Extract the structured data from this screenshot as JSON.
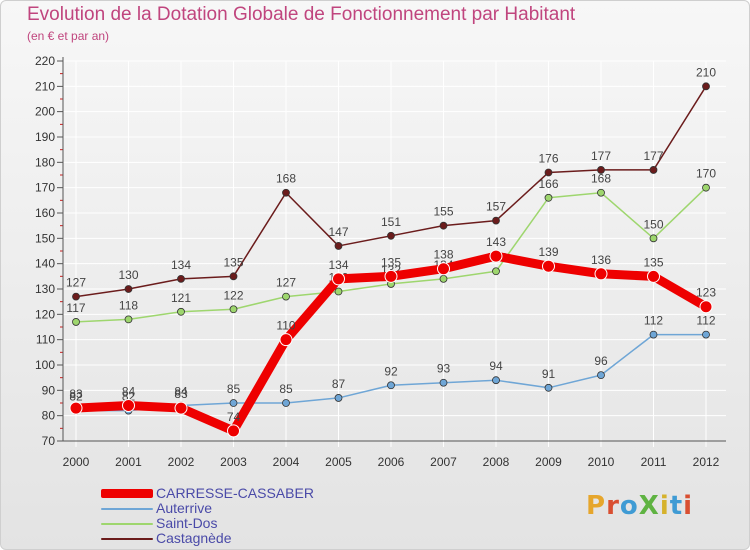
{
  "title": "Evolution de la Dotation Globale de Fonctionnement par Habitant",
  "subtitle": "(en € et par an)",
  "logo": {
    "text": "ProXiti",
    "letter_colors": [
      "#e6a62c",
      "#d94f31",
      "#3f9bd4",
      "#5fb342",
      "#d6b22c",
      "#3f9bd4",
      "#d94f31"
    ]
  },
  "chart_data": {
    "type": "line",
    "title": "Evolution de la Dotation Globale de Fonctionnement par Habitant",
    "subtitle": "(en € et par an)",
    "xlabel": "",
    "ylabel": "",
    "x": [
      "2000",
      "2001",
      "2002",
      "2003",
      "2004",
      "2005",
      "2006",
      "2007",
      "2008",
      "2009",
      "2010",
      "2011",
      "2012"
    ],
    "ylim": [
      70,
      220
    ],
    "yticks": [
      70,
      80,
      90,
      100,
      110,
      120,
      130,
      140,
      150,
      160,
      170,
      180,
      190,
      200,
      210,
      220
    ],
    "grid": true,
    "legend_position": "bottom-left",
    "series": [
      {
        "name": "Castagnède",
        "color": "#6b1c1c",
        "values": [
          127,
          130,
          134,
          135,
          168,
          147,
          151,
          155,
          157,
          176,
          177,
          177,
          210
        ]
      },
      {
        "name": "Saint-Dos",
        "color": "#9ed66e",
        "values": [
          117,
          118,
          121,
          122,
          127,
          129,
          132,
          134,
          137,
          166,
          168,
          150,
          170
        ]
      },
      {
        "name": "Auterrive",
        "color": "#6fa6d6",
        "values": [
          82,
          82,
          84,
          85,
          85,
          87,
          92,
          93,
          94,
          91,
          96,
          112,
          112
        ]
      },
      {
        "name": "CARRESSE-CASSABER",
        "color": "#ee0000",
        "values": [
          83,
          84,
          83,
          74,
          110,
          134,
          135,
          138,
          143,
          139,
          136,
          135,
          123
        ]
      }
    ],
    "legend_order": [
      "CARRESSE-CASSABER",
      "Auterrive",
      "Saint-Dos",
      "Castagnède"
    ]
  }
}
